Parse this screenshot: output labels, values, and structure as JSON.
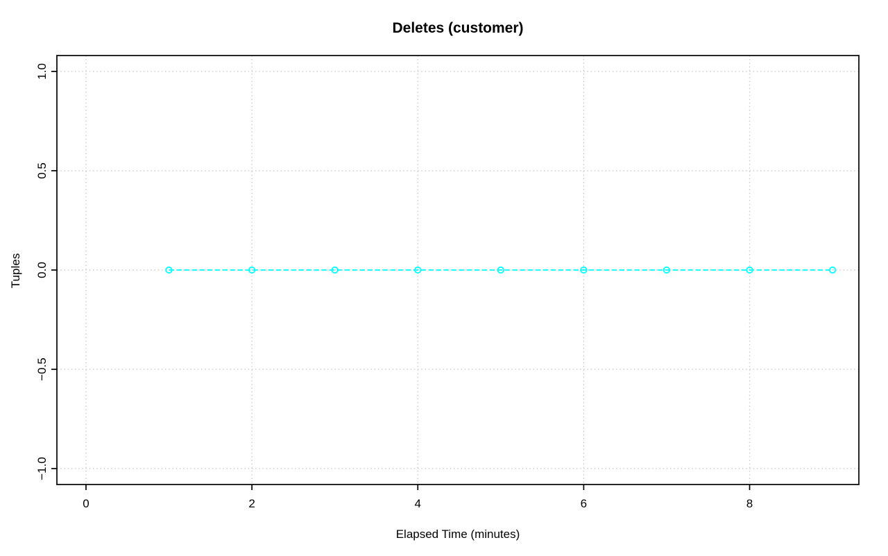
{
  "window": {
    "background": "#FFFFFF"
  },
  "chart_data": {
    "type": "line",
    "title": "Deletes (customer)",
    "xlabel": "Elapsed Time (minutes)",
    "ylabel": "Tuples",
    "series": [
      {
        "name": "Deletes (customer)",
        "x": [
          1,
          2,
          3,
          4,
          5,
          6,
          7,
          8,
          9
        ],
        "y": [
          0,
          0,
          0,
          0,
          0,
          0,
          0,
          0,
          0
        ]
      }
    ],
    "xlim": [
      -0.351,
      9.317
    ],
    "ylim": [
      -1.08,
      1.08
    ],
    "xticks": {
      "values": [
        0,
        2,
        4,
        6,
        8
      ],
      "labels": [
        "0",
        "2",
        "4",
        "6",
        "8"
      ]
    },
    "yticks": {
      "values": [
        -1.0,
        -0.5,
        0.0,
        0.5,
        1.0
      ],
      "labels": [
        "−1.0",
        "−0.5",
        "0.0",
        "0.5",
        "1.0"
      ]
    },
    "grid": {
      "visible": true,
      "style": "dotted",
      "color": "#CDCDCD"
    },
    "line": {
      "color": "#00FFFF",
      "style": "dashed",
      "marker": "open-circle"
    },
    "axis": {
      "color": "#000000",
      "tick_length": 8
    }
  }
}
